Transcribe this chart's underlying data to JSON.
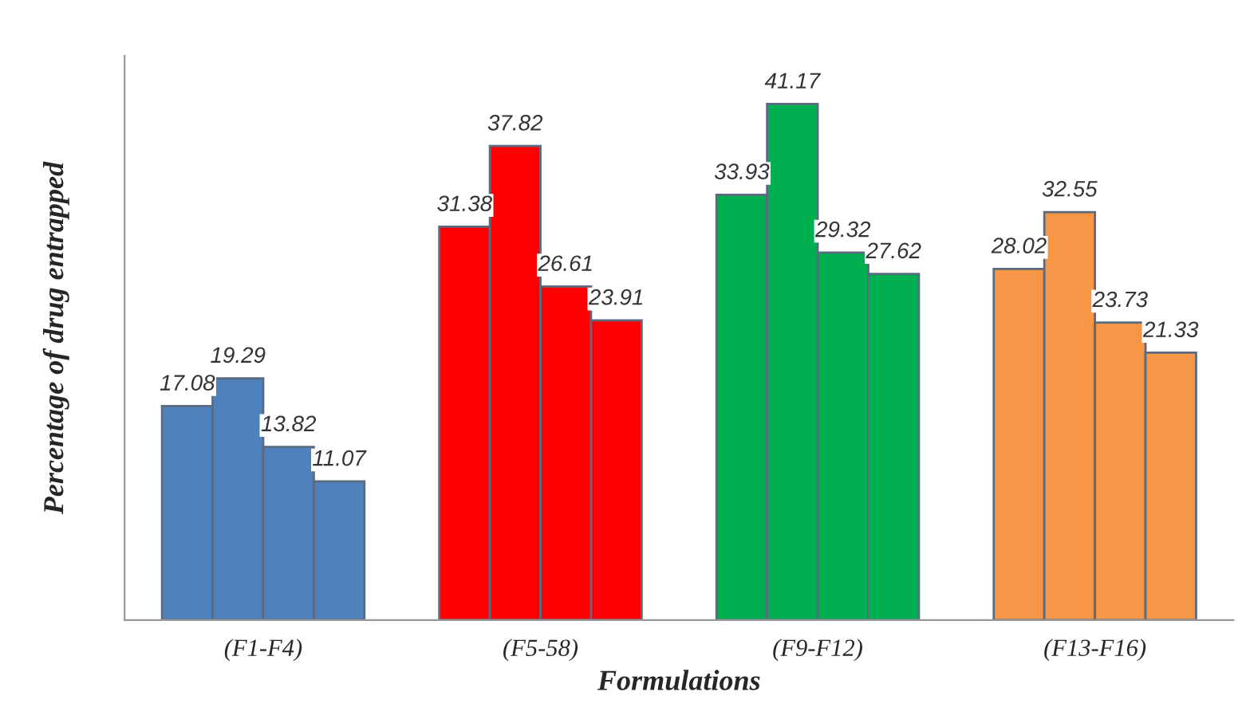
{
  "chart_data": {
    "type": "bar",
    "xlabel": "Formulations",
    "ylabel": "Percentage of drug entrapped",
    "categories": [
      "(F1-F4)",
      "(F5-58)",
      "(F9-F12)",
      "(F13-F16)"
    ],
    "series": [
      {
        "colors": [
          "#4f81bd",
          "#ff0000",
          "#00b050",
          "#f79646"
        ],
        "values": [
          17.08,
          31.38,
          33.93,
          28.02
        ]
      },
      {
        "colors": [
          "#4f81bd",
          "#ff0000",
          "#00b050",
          "#f79646"
        ],
        "values": [
          19.29,
          37.82,
          41.17,
          32.55
        ]
      },
      {
        "colors": [
          "#4f81bd",
          "#ff0000",
          "#00b050",
          "#f79646"
        ],
        "values": [
          13.82,
          26.61,
          29.32,
          23.73
        ]
      },
      {
        "colors": [
          "#4f81bd",
          "#ff0000",
          "#00b050",
          "#f79646"
        ],
        "values": [
          11.07,
          23.91,
          27.62,
          21.33
        ]
      }
    ],
    "ylim": [
      0,
      45
    ],
    "tick_labels": "x",
    "data_labels": true,
    "grid": false,
    "legend": false
  }
}
